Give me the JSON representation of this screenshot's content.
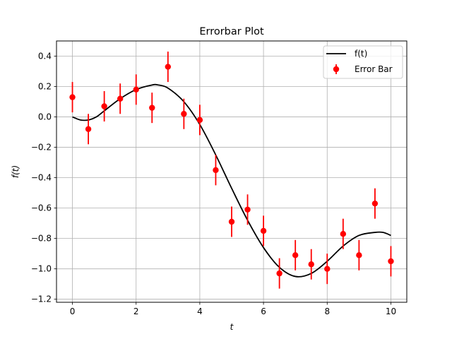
{
  "chart_data": {
    "type": "line",
    "title": "Errorbar Plot",
    "xlabel": "t",
    "ylabel": "f(t)",
    "xlim": [
      -0.5,
      10.5
    ],
    "ylim": [
      -1.22,
      0.5
    ],
    "grid": true,
    "legend_position": "top-right",
    "x_ticks": [
      0,
      2,
      4,
      6,
      8,
      10
    ],
    "x_tick_labels": [
      "0",
      "2",
      "4",
      "6",
      "8",
      "10"
    ],
    "y_ticks": [
      0.4,
      0.2,
      0.0,
      -0.2,
      -0.4,
      -0.6,
      -0.8,
      -1.0,
      -1.2
    ],
    "y_tick_labels": [
      "0.4",
      "0.2",
      "0.0",
      "−0.2",
      "−0.4",
      "−0.6",
      "−0.8",
      "−1.0",
      "−1.2"
    ],
    "series": [
      {
        "name": "f(t)",
        "type": "line",
        "color": "#000000",
        "x": [
          0,
          0.25,
          0.5,
          0.75,
          1,
          1.5,
          2,
          2.5,
          2.7,
          3,
          3.5,
          4,
          4.5,
          5,
          5.5,
          6,
          6.5,
          7,
          7.5,
          8,
          8.5,
          9,
          9.5,
          9.75,
          10
        ],
        "y": [
          0,
          -0.02,
          -0.02,
          0.0,
          0.04,
          0.12,
          0.18,
          0.21,
          0.21,
          0.19,
          0.1,
          -0.05,
          -0.25,
          -0.47,
          -0.68,
          -0.86,
          -0.99,
          -1.05,
          -1.03,
          -0.95,
          -0.85,
          -0.78,
          -0.76,
          -0.76,
          -0.78
        ]
      },
      {
        "name": "Error Bar",
        "type": "errorbar",
        "color": "#ff0000",
        "x": [
          0,
          0.5,
          1,
          1.5,
          2,
          2.5,
          3,
          3.5,
          4,
          4.5,
          5,
          5.5,
          6,
          6.5,
          7,
          7.5,
          8,
          8.5,
          9,
          9.5,
          10
        ],
        "y": [
          0.13,
          -0.08,
          0.07,
          0.12,
          0.18,
          0.06,
          0.33,
          0.02,
          -0.02,
          -0.35,
          -0.69,
          -0.61,
          -0.75,
          -1.03,
          -0.91,
          -0.97,
          -1.0,
          -0.77,
          -0.91,
          -0.57,
          -0.95
        ],
        "yerr": 0.1
      }
    ]
  }
}
